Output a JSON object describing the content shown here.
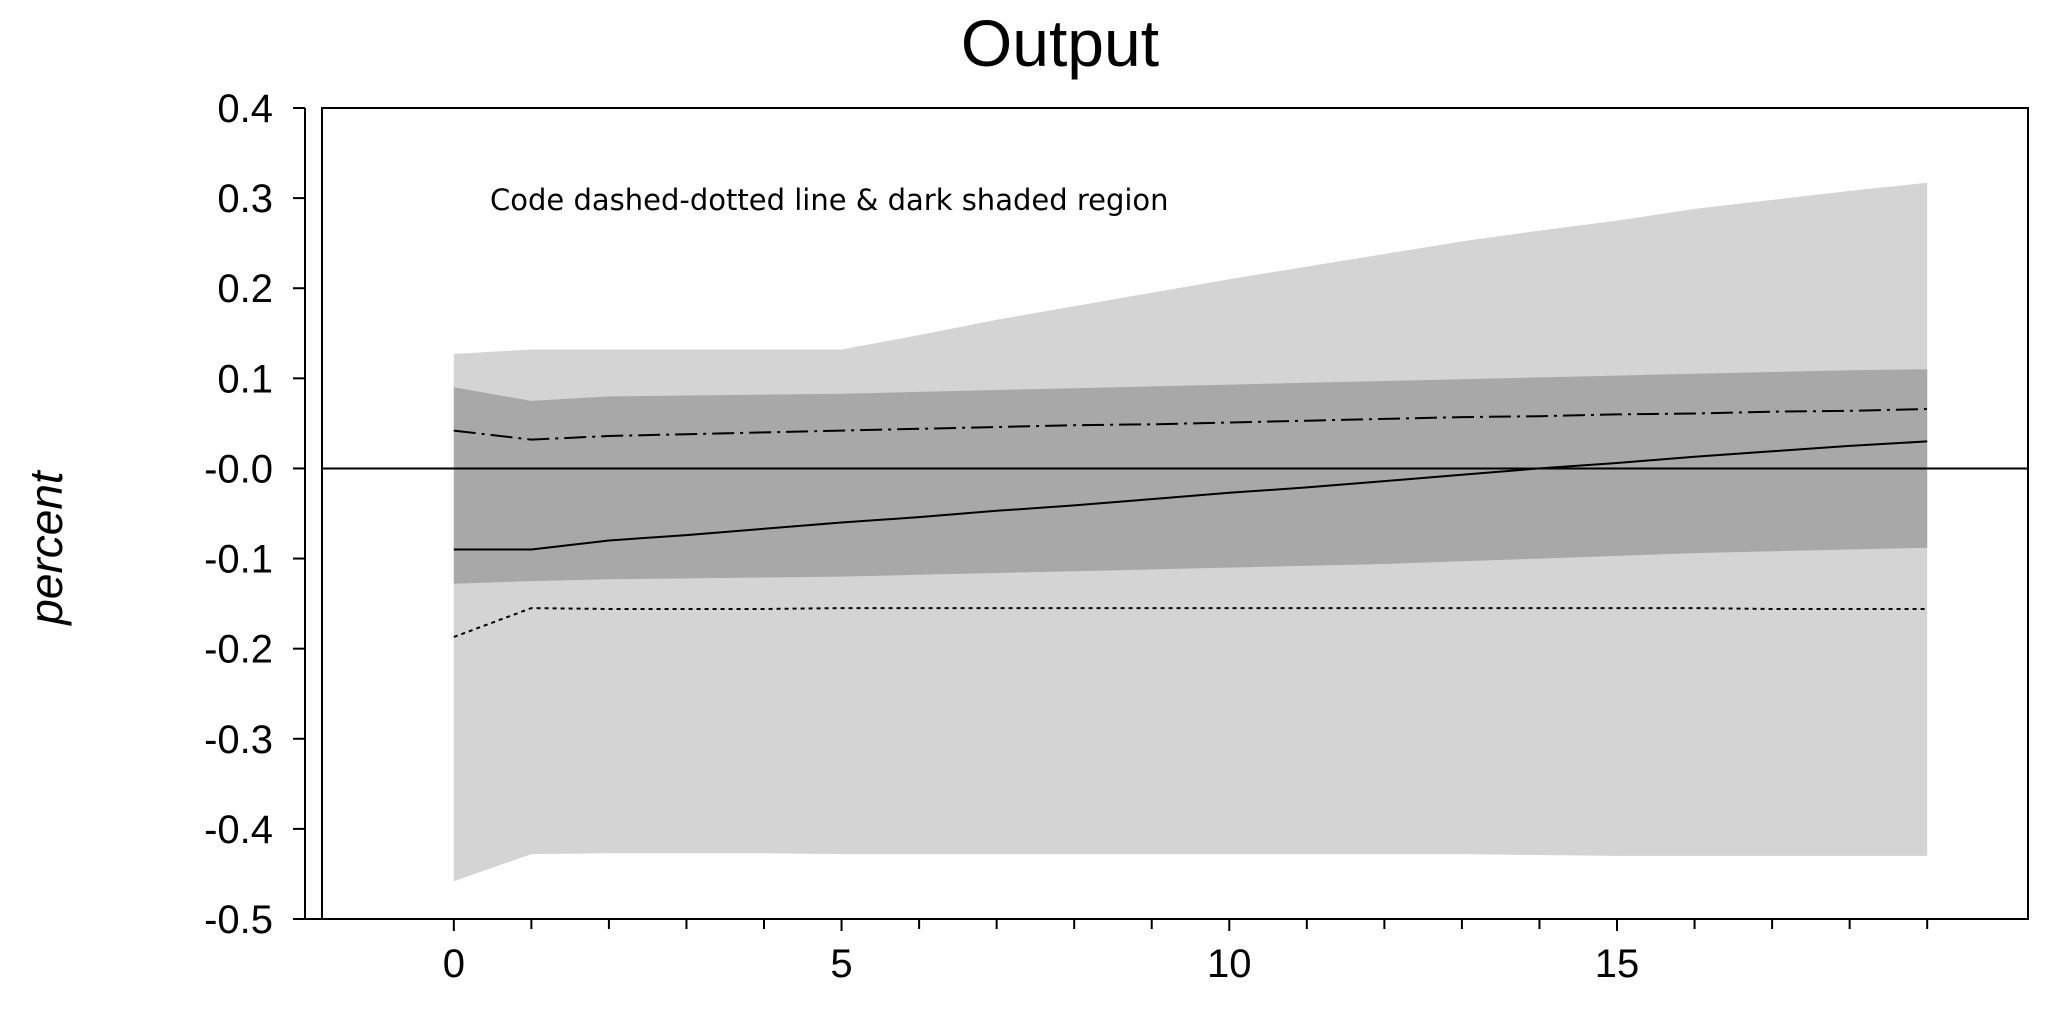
{
  "chart_data": {
    "type": "area",
    "title": "Output",
    "xlabel": "",
    "ylabel": "percent",
    "annotation": "Code dashed-dotted line & dark shaded region",
    "xlim": [
      -1.7,
      20.3
    ],
    "ylim": [
      -0.5,
      0.4
    ],
    "x_ticks": [
      0,
      5,
      10,
      15
    ],
    "x_minor_ticks": [
      1,
      2,
      3,
      4,
      6,
      7,
      8,
      9,
      11,
      12,
      13,
      14,
      16,
      17,
      18,
      19
    ],
    "y_ticks": [
      -0.5,
      -0.4,
      -0.3,
      -0.2,
      -0.1,
      0.0,
      0.1,
      0.2,
      0.3,
      0.4
    ],
    "y_tick_labels": [
      "-0.5",
      "-0.4",
      "-0.3",
      "-0.2",
      "-0.1",
      "-0.0",
      "0.1",
      "0.2",
      "0.3",
      "0.4"
    ],
    "zero_line": true,
    "grid": false,
    "x": [
      0,
      1,
      2,
      3,
      4,
      5,
      6,
      7,
      8,
      9,
      10,
      11,
      12,
      13,
      14,
      15,
      16,
      17,
      18,
      19
    ],
    "bands": [
      {
        "color": "#d4d4d4",
        "upper": [
          0.127,
          0.132,
          0.132,
          0.132,
          0.132,
          0.132,
          0.148,
          0.165,
          0.18,
          0.195,
          0.21,
          0.224,
          0.238,
          0.252,
          0.264,
          0.275,
          0.288,
          0.298,
          0.308,
          0.317
        ],
        "lower": [
          -0.458,
          -0.428,
          -0.427,
          -0.427,
          -0.427,
          -0.428,
          -0.428,
          -0.428,
          -0.428,
          -0.428,
          -0.428,
          -0.428,
          -0.428,
          -0.428,
          -0.429,
          -0.43,
          -0.43,
          -0.43,
          -0.43,
          -0.43
        ]
      },
      {
        "color": "#a8a8a8",
        "upper": [
          0.09,
          0.075,
          0.08,
          0.081,
          0.082,
          0.083,
          0.085,
          0.087,
          0.089,
          0.091,
          0.093,
          0.095,
          0.097,
          0.099,
          0.101,
          0.103,
          0.105,
          0.107,
          0.109,
          0.11
        ],
        "lower": [
          -0.128,
          -0.125,
          -0.123,
          -0.122,
          -0.121,
          -0.12,
          -0.118,
          -0.116,
          -0.114,
          -0.112,
          -0.11,
          -0.108,
          -0.106,
          -0.103,
          -0.1,
          -0.097,
          -0.094,
          -0.092,
          -0.09,
          -0.088
        ]
      }
    ],
    "series": [
      {
        "style": "solid",
        "color": "#000000",
        "values": [
          -0.09,
          -0.09,
          -0.08,
          -0.074,
          -0.067,
          -0.06,
          -0.054,
          -0.047,
          -0.041,
          -0.034,
          -0.027,
          -0.021,
          -0.014,
          -0.007,
          0.0,
          0.006,
          0.013,
          0.019,
          0.025,
          0.03
        ]
      },
      {
        "style": "dashdot",
        "color": "#000000",
        "values": [
          0.042,
          0.032,
          0.036,
          0.038,
          0.04,
          0.042,
          0.044,
          0.046,
          0.048,
          0.049,
          0.051,
          0.053,
          0.055,
          0.057,
          0.058,
          0.06,
          0.061,
          0.063,
          0.064,
          0.066
        ]
      },
      {
        "style": "dotted",
        "color": "#000000",
        "values": [
          -0.187,
          -0.155,
          -0.156,
          -0.156,
          -0.156,
          -0.155,
          -0.155,
          -0.155,
          -0.155,
          -0.155,
          -0.155,
          -0.155,
          -0.155,
          -0.155,
          -0.155,
          -0.155,
          -0.155,
          -0.156,
          -0.156,
          -0.156
        ]
      }
    ]
  }
}
